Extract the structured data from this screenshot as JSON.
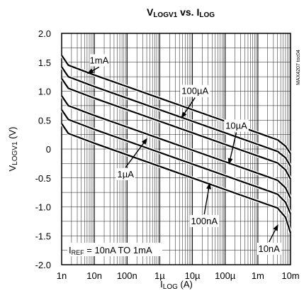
{
  "chart_data": {
    "type": "line",
    "title": {
      "main": "V",
      "main_sub": "LOGV1",
      "mid": " vs. I",
      "end_sub": "LOG"
    },
    "xlabel": {
      "main": "I",
      "sub": "LOG",
      "unit": " (A)"
    },
    "ylabel": {
      "main": "V",
      "sub": "LOGV1",
      "unit": " (V)"
    },
    "x_scale": "log",
    "xlim": [
      1e-09,
      0.01
    ],
    "ylim": [
      -2.0,
      2.0
    ],
    "grid": true,
    "x_ticks": [
      {
        "v": 1e-09,
        "label": "1n"
      },
      {
        "v": 1e-08,
        "label": "10n"
      },
      {
        "v": 1e-07,
        "label": "100n"
      },
      {
        "v": 1e-06,
        "label": "1µ"
      },
      {
        "v": 1e-05,
        "label": "10µ"
      },
      {
        "v": 0.0001,
        "label": "100µ"
      },
      {
        "v": 0.001,
        "label": "1m"
      },
      {
        "v": 0.01,
        "label": "10m"
      }
    ],
    "y_ticks": [
      {
        "v": 2.0,
        "label": "2.0"
      },
      {
        "v": 1.5,
        "label": "1.5"
      },
      {
        "v": 1.0,
        "label": "1.0"
      },
      {
        "v": 0.5,
        "label": "0.5"
      },
      {
        "v": 0,
        "label": "0"
      },
      {
        "v": -0.5,
        "label": "-0.5"
      },
      {
        "v": -1.0,
        "label": "-1.0"
      },
      {
        "v": -1.5,
        "label": "-1.5"
      },
      {
        "v": -2.0,
        "label": "-2.0"
      }
    ],
    "series": [
      {
        "name": "1mA",
        "values": [
          [
            1e-09,
            1.62
          ],
          [
            1.6e-09,
            1.45
          ],
          [
            1e-08,
            1.28
          ],
          [
            1e-07,
            1.08
          ],
          [
            1e-06,
            0.88
          ],
          [
            1e-05,
            0.68
          ],
          [
            0.0001,
            0.48
          ],
          [
            0.001,
            0.28
          ],
          [
            0.004,
            0.16
          ],
          [
            0.007,
            0.05
          ],
          [
            0.01,
            -0.08
          ]
        ]
      },
      {
        "name": "100µA",
        "values": [
          [
            1e-09,
            1.42
          ],
          [
            1.6e-09,
            1.25
          ],
          [
            1e-08,
            1.08
          ],
          [
            1e-07,
            0.88
          ],
          [
            1e-06,
            0.68
          ],
          [
            1e-05,
            0.48
          ],
          [
            0.0001,
            0.28
          ],
          [
            0.001,
            0.08
          ],
          [
            0.004,
            -0.04
          ],
          [
            0.007,
            -0.15
          ],
          [
            0.01,
            -0.3
          ]
        ]
      },
      {
        "name": "10µA",
        "values": [
          [
            1e-09,
            1.22
          ],
          [
            1.6e-09,
            1.05
          ],
          [
            1e-08,
            0.88
          ],
          [
            1e-07,
            0.68
          ],
          [
            1e-06,
            0.48
          ],
          [
            1e-05,
            0.28
          ],
          [
            0.0001,
            0.08
          ],
          [
            0.001,
            -0.12
          ],
          [
            0.004,
            -0.24
          ],
          [
            0.007,
            -0.36
          ],
          [
            0.01,
            -0.52
          ]
        ]
      },
      {
        "name": "1µA",
        "values": [
          [
            1e-09,
            0.92
          ],
          [
            1.6e-09,
            0.75
          ],
          [
            1e-08,
            0.58
          ],
          [
            1e-07,
            0.38
          ],
          [
            1e-06,
            0.18
          ],
          [
            1e-05,
            -0.02
          ],
          [
            0.0001,
            -0.22
          ],
          [
            0.001,
            -0.42
          ],
          [
            0.004,
            -0.54
          ],
          [
            0.007,
            -0.67
          ],
          [
            0.01,
            -0.85
          ]
        ]
      },
      {
        "name": "100nA",
        "values": [
          [
            1e-09,
            0.68
          ],
          [
            1.6e-09,
            0.51
          ],
          [
            1e-08,
            0.34
          ],
          [
            1e-07,
            0.14
          ],
          [
            1e-06,
            -0.06
          ],
          [
            1e-05,
            -0.26
          ],
          [
            0.0001,
            -0.46
          ],
          [
            0.001,
            -0.66
          ],
          [
            0.004,
            -0.78
          ],
          [
            0.007,
            -0.92
          ],
          [
            0.01,
            -1.12
          ]
        ]
      },
      {
        "name": "10nA",
        "values": [
          [
            1e-09,
            0.44
          ],
          [
            1.6e-09,
            0.27
          ],
          [
            1e-08,
            0.1
          ],
          [
            1e-07,
            -0.1
          ],
          [
            1e-06,
            -0.3
          ],
          [
            1e-05,
            -0.5
          ],
          [
            0.0001,
            -0.7
          ],
          [
            0.001,
            -0.9
          ],
          [
            0.004,
            -1.02
          ],
          [
            0.007,
            -1.18
          ],
          [
            0.01,
            -1.45
          ]
        ]
      }
    ],
    "annotations": [
      {
        "text": "1mA",
        "at": [
          1.4e-08,
          1.48
        ],
        "arrow_to": [
          6e-09,
          1.3
        ]
      },
      {
        "text": "100µA",
        "at": [
          1.2e-05,
          0.95
        ],
        "arrow_to": [
          4.5e-06,
          0.53
        ]
      },
      {
        "text": "10µA",
        "at": [
          0.00022,
          0.35
        ],
        "arrow_to": [
          0.00013,
          -0.27
        ]
      },
      {
        "text": "1µA",
        "at": [
          9e-08,
          -0.49
        ],
        "arrow_to": [
          4.2e-07,
          0.19
        ]
      },
      {
        "text": "100nA",
        "at": [
          2.3e-05,
          -1.3
        ],
        "arrow_to": [
          3.4e-05,
          -0.58
        ]
      },
      {
        "text": "10nA",
        "at": [
          0.0022,
          -1.78
        ],
        "arrow_to": [
          0.0042,
          -1.3
        ]
      }
    ],
    "note": {
      "main": "I",
      "sub": "REF",
      "rest": " = 10nA TO 1mA"
    },
    "side_text": "MAX4207 toc04"
  }
}
